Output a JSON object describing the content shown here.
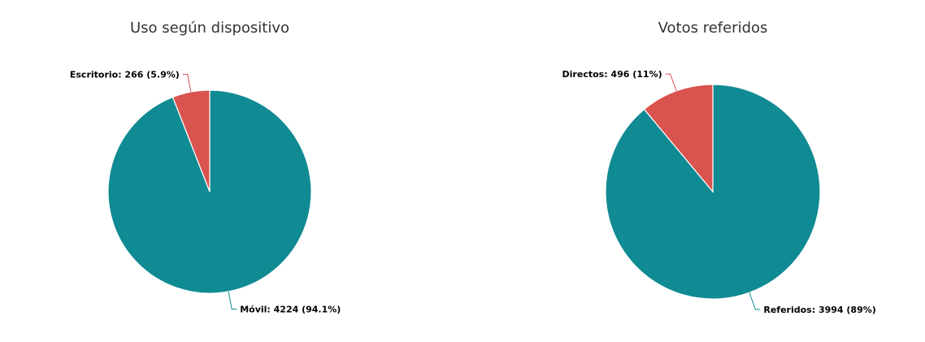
{
  "chart_data": [
    {
      "type": "pie",
      "title": "Uso según dispositivo",
      "slices": [
        {
          "name": "Escritorio",
          "value": 266,
          "percent_label": "5.9%",
          "label": "Escritorio: 266 (5.9%)",
          "color": "#d9534f"
        },
        {
          "name": "Móvil",
          "value": 4224,
          "percent_label": "94.1%",
          "label": "Móvil: 4224 (94.1%)",
          "color": "#108a93"
        }
      ],
      "legend": "none"
    },
    {
      "type": "pie",
      "title": "Votos referidos",
      "slices": [
        {
          "name": "Directos",
          "value": 496,
          "percent_label": "11%",
          "label": "Directos: 496 (11%)",
          "color": "#d9534f"
        },
        {
          "name": "Referidos",
          "value": 3994,
          "percent_label": "89%",
          "label": "Referidos: 3994 (89%)",
          "color": "#108a93"
        }
      ],
      "legend": "none"
    }
  ]
}
